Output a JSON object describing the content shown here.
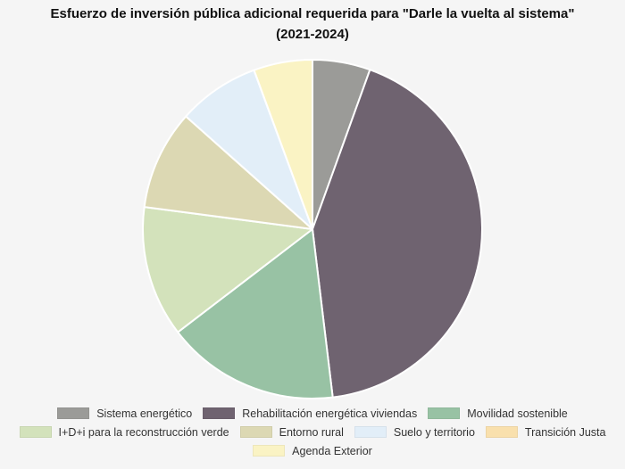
{
  "chart_data": {
    "type": "pie",
    "title_line1": "Esfuerzo de inversión pública adicional requerida para \"Darle la vuelta al sistema\"",
    "title_line2": "(2021-2024)",
    "legend_position": "bottom",
    "slices": [
      {
        "label": "Sistema energético",
        "value": 5.5,
        "color": "#9b9b98"
      },
      {
        "label": "Rehabilitación energética viviendas",
        "value": 42.6,
        "color": "#6f6370"
      },
      {
        "label": "Movilidad sostenible",
        "value": 16.5,
        "color": "#98c2a4"
      },
      {
        "label": "I+D+i para la reconstrucción verde",
        "value": 12.5,
        "color": "#d3e2bb"
      },
      {
        "label": "Entorno rural",
        "value": 9.5,
        "color": "#dcd8b3"
      },
      {
        "label": "Suelo y territorio",
        "value": 7.8,
        "color": "#e2eef8"
      },
      {
        "label": "Transición Justa",
        "value": 0.01,
        "color": "#f9e0ad"
      },
      {
        "label": "Agenda Exterior",
        "value": 5.6,
        "color": "#faf3c4"
      }
    ]
  }
}
